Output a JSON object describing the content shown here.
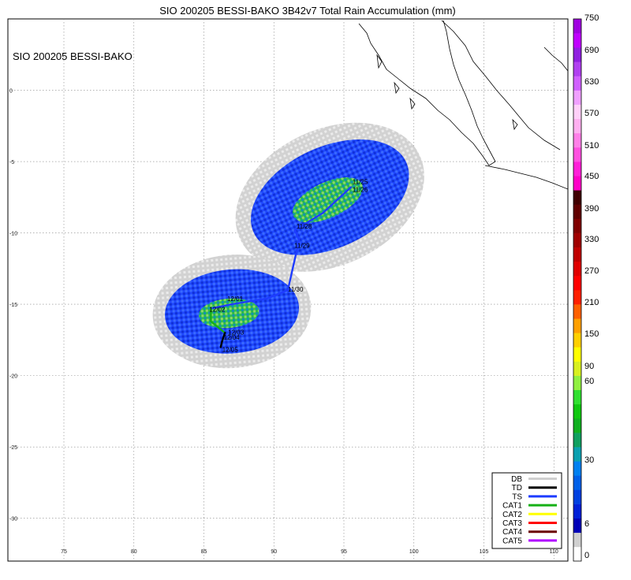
{
  "title": "SIO 200205 BESSI-BAKO 3B42v7 Total Rain Accumulation (mm)",
  "storm_label": "SIO 200205 BESSI-BAKO",
  "map": {
    "lon_range": [
      71,
      111
    ],
    "lat_range": [
      -33,
      5
    ],
    "lon_ticks": [
      75,
      80,
      85,
      90,
      95,
      100,
      105,
      110
    ],
    "lat_ticks": [
      0,
      -5,
      -10,
      -15,
      -20,
      -25,
      -30
    ]
  },
  "colorbar": {
    "labels": [
      "0",
      "6",
      "30",
      "60",
      "90",
      "150",
      "210",
      "270",
      "330",
      "390",
      "450",
      "510",
      "570",
      "630",
      "690",
      "750"
    ],
    "colors": [
      "#ffffff",
      "#d0d0d0",
      "#0000b8",
      "#0020d8",
      "#0040e0",
      "#0060e8",
      "#0080f0",
      "#0aa0b0",
      "#10a060",
      "#10b020",
      "#10c810",
      "#30e030",
      "#90f040",
      "#d8f020",
      "#ffff00",
      "#ffd000",
      "#ffa000",
      "#ff6000",
      "#ff2000",
      "#ff0000",
      "#e00000",
      "#c00000",
      "#a00000",
      "#800000",
      "#600000",
      "#400000",
      "#ff00c8",
      "#ff20d8",
      "#ff50e0",
      "#ff80e8",
      "#ffb0f0",
      "#ffd0f8",
      "#f0a0ff",
      "#d060ff",
      "#b040f0",
      "#9020e0",
      "#c000ff",
      "#a000e0"
    ]
  },
  "legend": [
    {
      "label": "DB",
      "color": "#d0d0d0"
    },
    {
      "label": "TD",
      "color": "#000000"
    },
    {
      "label": "TS",
      "color": "#1e3cff"
    },
    {
      "label": "CAT1",
      "color": "#16b016"
    },
    {
      "label": "CAT2",
      "color": "#ffff00"
    },
    {
      "label": "CAT3",
      "color": "#ff0000"
    },
    {
      "label": "CAT4",
      "color": "#6b0000"
    },
    {
      "label": "CAT5",
      "color": "#b000ff"
    }
  ],
  "track": {
    "dates": [
      "11/25",
      "11/26",
      "11/28",
      "11/29",
      "11/30",
      "12/01",
      "12/02",
      "12/03",
      "12/04",
      "12/05"
    ],
    "points": [
      {
        "lon": 95.5,
        "lat": -6.8,
        "cat": "TD"
      },
      {
        "lon": 93.5,
        "lat": -8.6,
        "cat": "TS"
      },
      {
        "lon": 91.5,
        "lat": -9.8,
        "cat": "TS"
      },
      {
        "lon": 91.8,
        "lat": -10.5,
        "cat": "TS"
      },
      {
        "lon": 91.0,
        "lat": -14.0,
        "cat": "TS"
      },
      {
        "lon": 89.5,
        "lat": -14.6,
        "cat": "TS"
      },
      {
        "lon": 87.0,
        "lat": -15.0,
        "cat": "TS"
      },
      {
        "lon": 85.5,
        "lat": -15.3,
        "cat": "TS"
      },
      {
        "lon": 85.5,
        "lat": -16.2,
        "cat": "CAT1"
      },
      {
        "lon": 86.5,
        "lat": -17.0,
        "cat": "CAT1"
      },
      {
        "lon": 86.3,
        "lat": -17.6,
        "cat": "TD"
      },
      {
        "lon": 86.2,
        "lat": -18.0,
        "cat": "TD"
      }
    ]
  },
  "rain_fields": [
    {
      "name": "north-blob",
      "lon": 94.0,
      "lat": -7.5,
      "rx": 6.0,
      "ry": 3.6,
      "rot": -25
    },
    {
      "name": "south-blob",
      "lon": 87.0,
      "lat": -15.5,
      "rx": 4.8,
      "ry": 3.0,
      "rot": -5
    }
  ]
}
